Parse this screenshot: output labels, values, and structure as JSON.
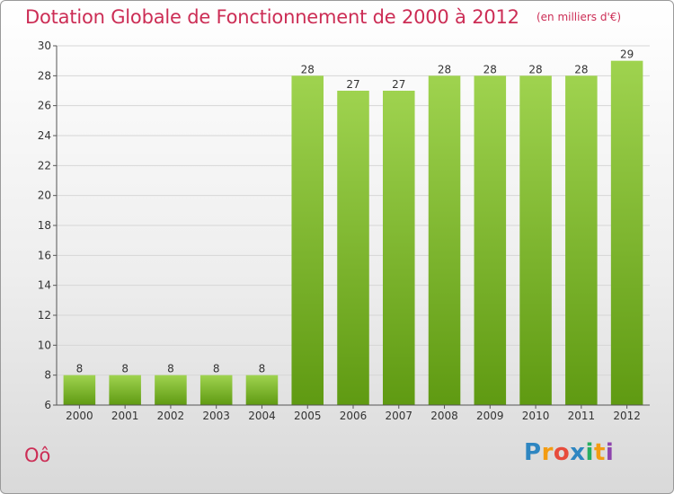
{
  "chart_data": {
    "type": "bar",
    "title": "Dotation Globale de Fonctionnement de 2000 à 2012",
    "unit": "(en milliers d'€)",
    "categories": [
      "2000",
      "2001",
      "2002",
      "2003",
      "2004",
      "2005",
      "2006",
      "2007",
      "2008",
      "2009",
      "2010",
      "2011",
      "2012"
    ],
    "values": [
      8,
      8,
      8,
      8,
      8,
      28,
      27,
      27,
      28,
      28,
      28,
      28,
      29
    ],
    "ylim": [
      6,
      30
    ],
    "yticks": [
      6,
      8,
      10,
      12,
      14,
      16,
      18,
      20,
      22,
      24,
      26,
      28,
      30
    ],
    "grid": "horizontal",
    "bar_color_top": "#9fd34f",
    "bar_color_bottom": "#5f9a12"
  },
  "commune": "Oô",
  "logo": {
    "letters": [
      "P",
      "r",
      "o",
      "x",
      "i",
      "t",
      "i"
    ]
  }
}
